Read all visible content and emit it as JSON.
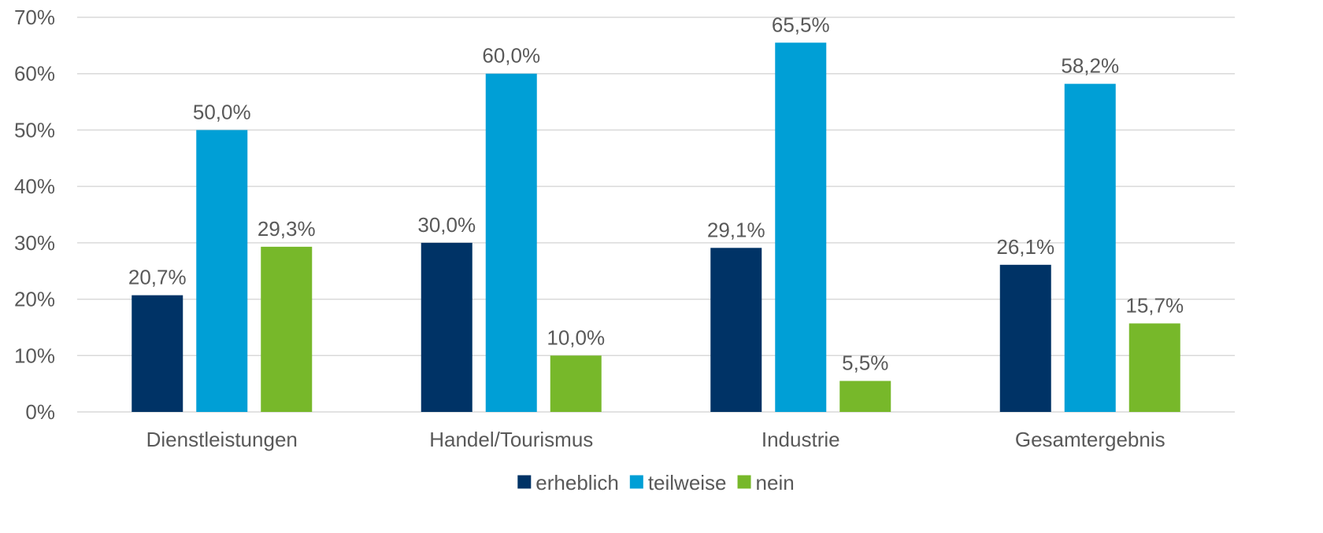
{
  "chart_data": {
    "type": "bar",
    "categories": [
      "Dienstleistungen",
      "Handel/Tourismus",
      "Industrie",
      "Gesamtergebnis"
    ],
    "series": [
      {
        "name": "erheblich",
        "values": [
          20.7,
          30.0,
          29.1,
          26.1
        ],
        "labels": [
          "20,7%",
          "30,0%",
          "29,1%",
          "26,1%"
        ],
        "color": "#003366"
      },
      {
        "name": "teilweise",
        "values": [
          50.0,
          60.0,
          65.5,
          58.2
        ],
        "labels": [
          "50,0%",
          "60,0%",
          "65,5%",
          "58,2%"
        ],
        "color": "#009fd6"
      },
      {
        "name": "nein",
        "values": [
          29.3,
          10.0,
          5.5,
          15.7
        ],
        "labels": [
          "29,3%",
          "10,0%",
          "5,5%",
          "15,7%"
        ],
        "color": "#77b82a"
      }
    ],
    "yticks": [
      0,
      10,
      20,
      30,
      40,
      50,
      60,
      70
    ],
    "ytick_labels": [
      "0%",
      "10%",
      "20%",
      "30%",
      "40%",
      "50%",
      "60%",
      "70%"
    ],
    "ylim": [
      0,
      70
    ],
    "grid": true,
    "gridline_color": "#d9d9d9",
    "legend_position": "bottom"
  }
}
